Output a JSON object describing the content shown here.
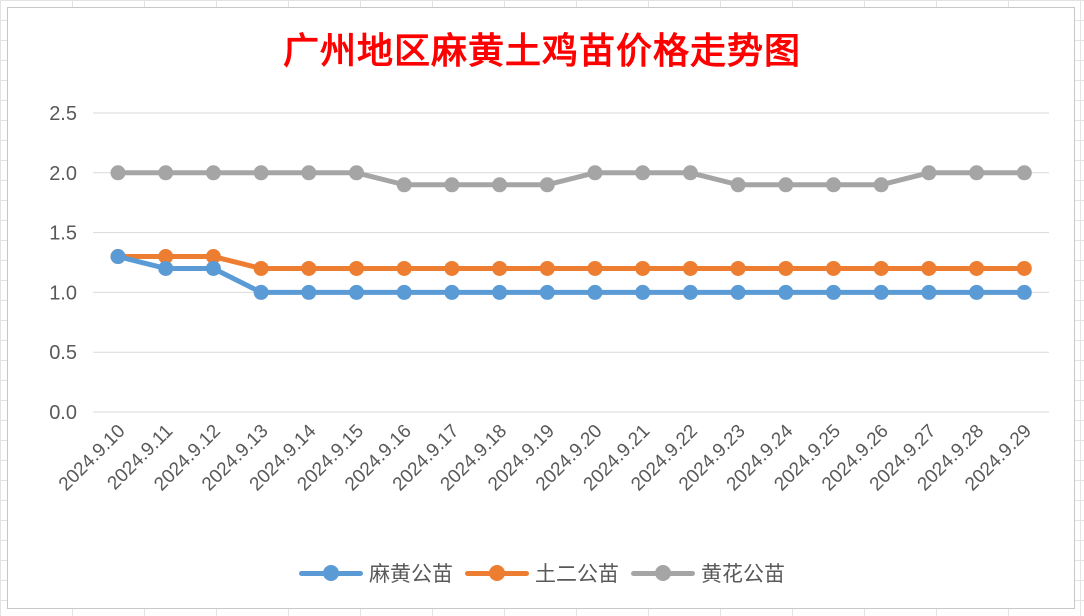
{
  "chart_data": {
    "type": "line",
    "title": "广州地区麻黄土鸡苗价格走势图",
    "categories": [
      "2024.9.10",
      "2024.9.11",
      "2024.9.12",
      "2024.9.13",
      "2024.9.14",
      "2024.9.15",
      "2024.9.16",
      "2024.9.17",
      "2024.9.18",
      "2024.9.19",
      "2024.9.20",
      "2024.9.21",
      "2024.9.22",
      "2024.9.23",
      "2024.9.24",
      "2024.9.25",
      "2024.9.26",
      "2024.9.27",
      "2024.9.28",
      "2024.9.29"
    ],
    "y_ticks": [
      "0.0",
      "0.5",
      "1.0",
      "1.5",
      "2.0",
      "2.5"
    ],
    "ylim": [
      0,
      2.5
    ],
    "grid": true,
    "legend_position": "bottom",
    "series": [
      {
        "name": "麻黄公苗",
        "color": "#5B9BD5",
        "values": [
          1.3,
          1.2,
          1.2,
          1.0,
          1.0,
          1.0,
          1.0,
          1.0,
          1.0,
          1.0,
          1.0,
          1.0,
          1.0,
          1.0,
          1.0,
          1.0,
          1.0,
          1.0,
          1.0,
          1.0
        ]
      },
      {
        "name": "土二公苗",
        "color": "#ED7D31",
        "values": [
          1.3,
          1.3,
          1.3,
          1.2,
          1.2,
          1.2,
          1.2,
          1.2,
          1.2,
          1.2,
          1.2,
          1.2,
          1.2,
          1.2,
          1.2,
          1.2,
          1.2,
          1.2,
          1.2,
          1.2
        ]
      },
      {
        "name": "黄花公苗",
        "color": "#A5A5A5",
        "values": [
          2.0,
          2.0,
          2.0,
          2.0,
          2.0,
          2.0,
          1.9,
          1.9,
          1.9,
          1.9,
          2.0,
          2.0,
          2.0,
          1.9,
          1.9,
          1.9,
          1.9,
          2.0,
          2.0,
          2.0
        ]
      }
    ]
  }
}
